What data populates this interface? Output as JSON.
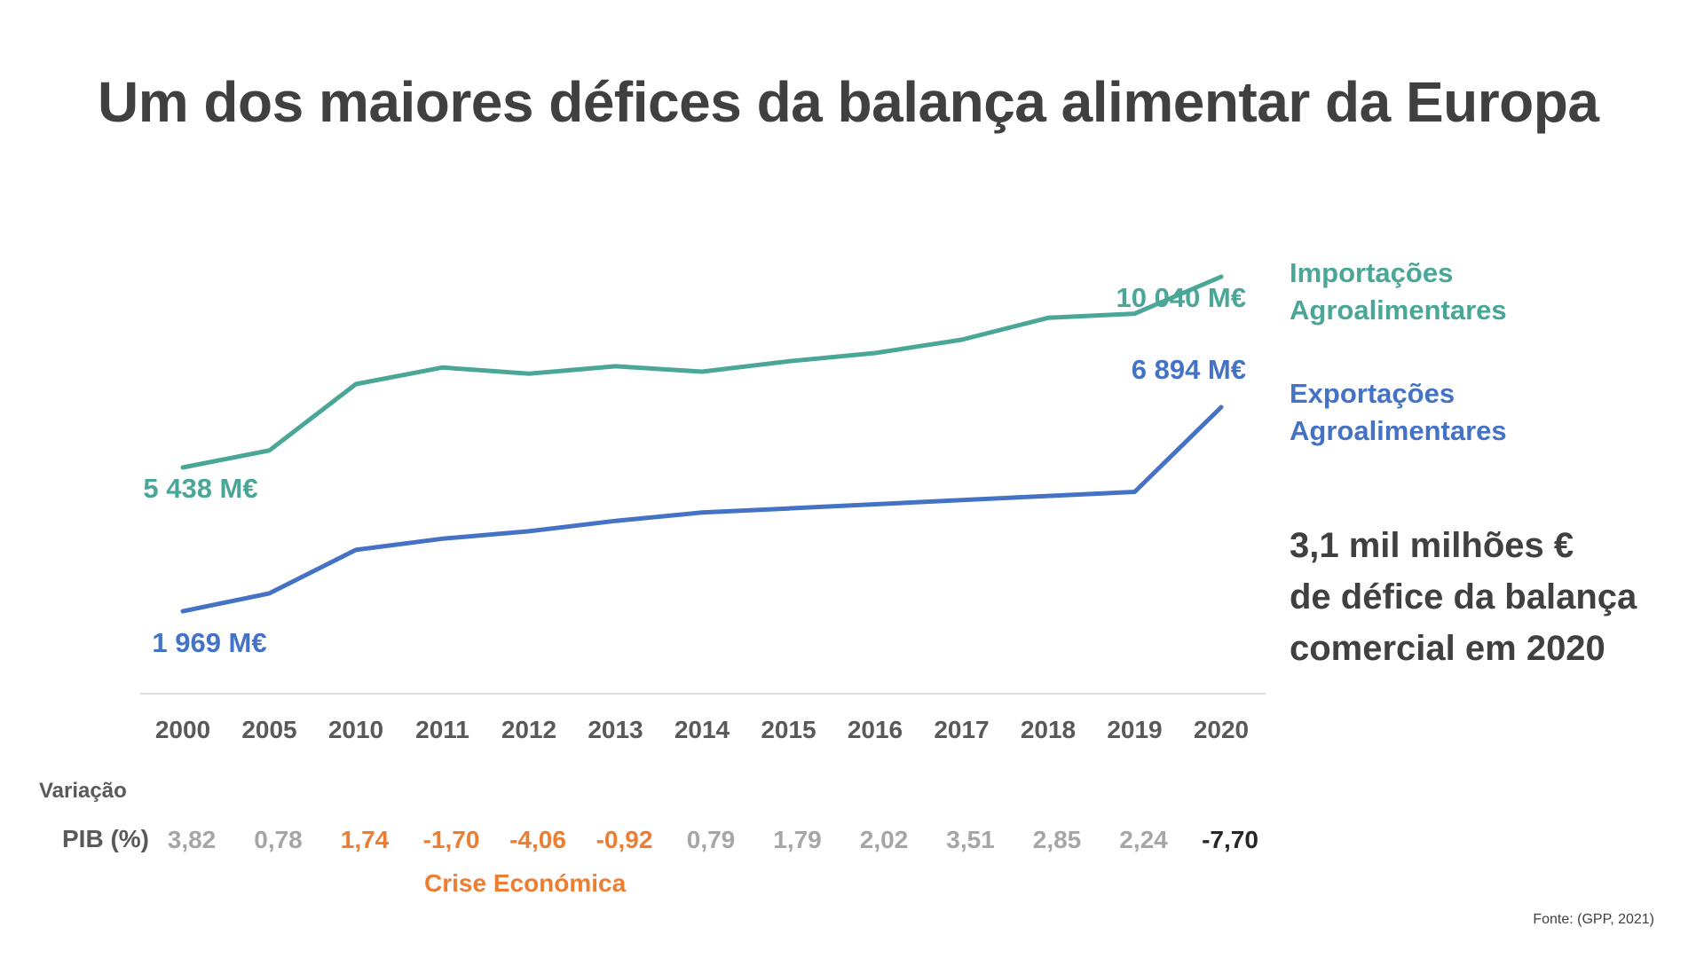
{
  "title": "Um dos maiores défices da balança alimentar da Europa",
  "legend": {
    "imports": [
      "Importações",
      "Agroalimentares"
    ],
    "exports": [
      "Exportações",
      "Agroalimentares"
    ]
  },
  "callout": [
    "3,1 mil milhões €",
    "de défice da balança",
    "comercial em 2020"
  ],
  "pib": {
    "label_line1": "Variação",
    "label_line2": "PIB (%)",
    "values": [
      "3,82",
      "0,78",
      "1,74",
      "-1,70",
      "-4,06",
      "-0,92",
      "0,79",
      "1,79",
      "2,02",
      "3,51",
      "2,85",
      "2,24",
      "-7,70"
    ],
    "value_status": [
      "normal",
      "normal",
      "crisis",
      "crisis",
      "crisis",
      "crisis",
      "normal",
      "normal",
      "normal",
      "normal",
      "normal",
      "normal",
      "pandemic"
    ],
    "crisis_label": "Crise Económica"
  },
  "source": "Fonte: (GPP, 2021)",
  "colors": {
    "imports": "#4aa697",
    "exports": "#4472c4",
    "axis": "#d9d9d9",
    "normal_pib": "#a6a6a6",
    "crisis_pib": "#ed7d31",
    "pandemic_pib": "#262626",
    "title": "#404040",
    "tick": "#595959"
  },
  "chart_data": {
    "type": "line",
    "categories": [
      "2000",
      "2005",
      "2010",
      "2011",
      "2012",
      "2013",
      "2014",
      "2015",
      "2016",
      "2017",
      "2018",
      "2019",
      "2020"
    ],
    "series": [
      {
        "name": "Importações Agroalimentares",
        "values": [
          5438,
          5850,
          7450,
          7850,
          7700,
          7880,
          7750,
          8000,
          8200,
          8520,
          9050,
          9150,
          10040
        ]
      },
      {
        "name": "Exportações Agroalimentares",
        "values": [
          1969,
          2400,
          3450,
          3720,
          3900,
          4150,
          4350,
          4450,
          4550,
          4650,
          4750,
          4850,
          6894
        ]
      }
    ],
    "data_labels": {
      "imports_start": "5 438 M€",
      "imports_end": "10 040 M€",
      "exports_start": "1 969 M€",
      "exports_end": "6 894 M€"
    },
    "xlabel": "",
    "ylabel": "",
    "grid": false,
    "legend_position": "right"
  }
}
